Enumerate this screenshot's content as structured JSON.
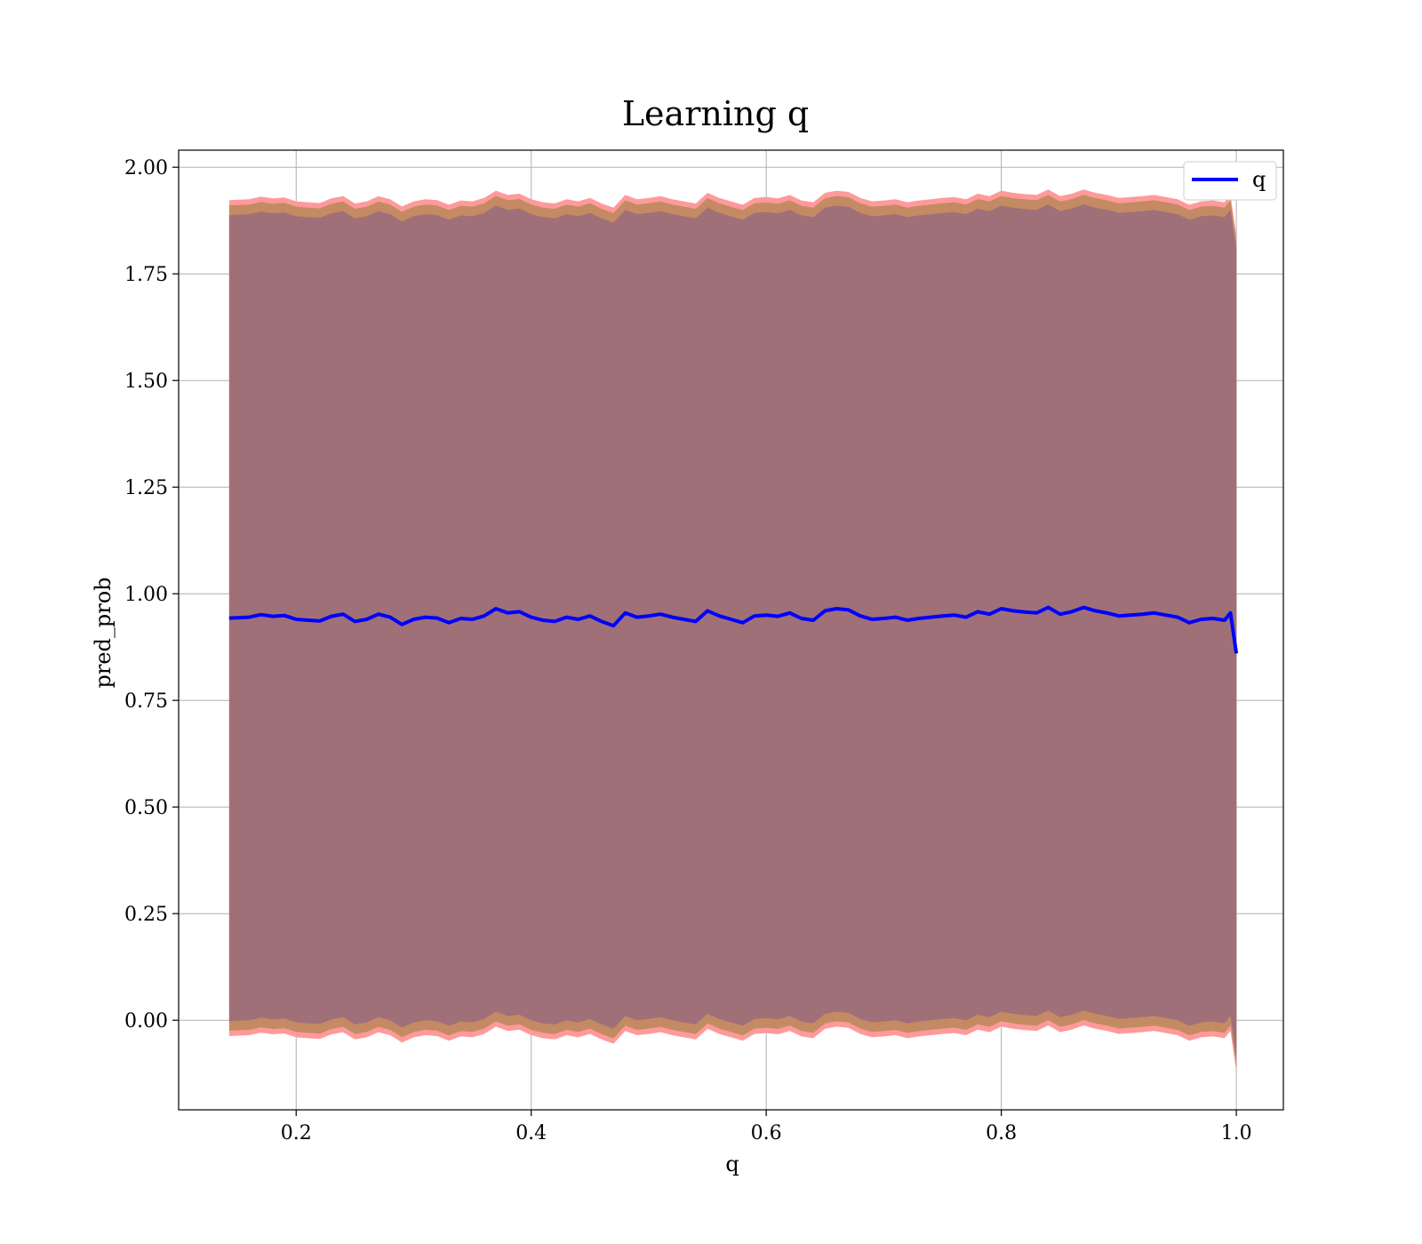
{
  "chart_data": {
    "type": "line",
    "title": "Learning q",
    "xlabel": "q",
    "ylabel": "pred_prob",
    "xlim": [
      0.1,
      1.04
    ],
    "ylim": [
      -0.21,
      2.04
    ],
    "x_ticks": [
      0.2,
      0.4,
      0.6,
      0.8,
      1.0
    ],
    "x_tick_labels": [
      "0.2",
      "0.4",
      "0.6",
      "0.8",
      "1.0"
    ],
    "y_ticks": [
      0.0,
      0.25,
      0.5,
      0.75,
      1.0,
      1.25,
      1.5,
      1.75,
      2.0
    ],
    "y_tick_labels": [
      "0.00",
      "0.25",
      "0.50",
      "0.75",
      "1.00",
      "1.25",
      "1.50",
      "1.75",
      "2.00"
    ],
    "grid": true,
    "legend": {
      "position": "top-right",
      "entries": [
        {
          "label": "q",
          "color": "#0000ff"
        }
      ]
    },
    "series": [
      {
        "name": "q",
        "color": "#0000ff",
        "x": [
          0.143,
          0.16,
          0.17,
          0.18,
          0.19,
          0.2,
          0.21,
          0.22,
          0.23,
          0.24,
          0.25,
          0.26,
          0.27,
          0.28,
          0.29,
          0.3,
          0.31,
          0.32,
          0.33,
          0.34,
          0.35,
          0.36,
          0.37,
          0.38,
          0.39,
          0.4,
          0.41,
          0.42,
          0.43,
          0.44,
          0.45,
          0.46,
          0.47,
          0.48,
          0.49,
          0.5,
          0.51,
          0.52,
          0.53,
          0.54,
          0.55,
          0.56,
          0.57,
          0.58,
          0.59,
          0.6,
          0.61,
          0.62,
          0.63,
          0.64,
          0.65,
          0.66,
          0.67,
          0.68,
          0.69,
          0.7,
          0.71,
          0.72,
          0.73,
          0.74,
          0.75,
          0.76,
          0.77,
          0.78,
          0.79,
          0.8,
          0.81,
          0.82,
          0.83,
          0.84,
          0.85,
          0.86,
          0.87,
          0.88,
          0.89,
          0.9,
          0.91,
          0.92,
          0.93,
          0.94,
          0.95,
          0.96,
          0.97,
          0.98,
          0.99,
          0.995,
          1.0
        ],
        "values": [
          0.943,
          0.945,
          0.951,
          0.947,
          0.949,
          0.94,
          0.938,
          0.936,
          0.947,
          0.952,
          0.935,
          0.94,
          0.952,
          0.945,
          0.928,
          0.94,
          0.945,
          0.943,
          0.932,
          0.942,
          0.94,
          0.948,
          0.965,
          0.955,
          0.958,
          0.945,
          0.938,
          0.935,
          0.945,
          0.94,
          0.948,
          0.935,
          0.925,
          0.955,
          0.945,
          0.948,
          0.952,
          0.945,
          0.94,
          0.935,
          0.96,
          0.948,
          0.94,
          0.932,
          0.948,
          0.95,
          0.947,
          0.955,
          0.942,
          0.938,
          0.96,
          0.965,
          0.962,
          0.948,
          0.94,
          0.942,
          0.945,
          0.938,
          0.942,
          0.945,
          0.948,
          0.95,
          0.945,
          0.958,
          0.952,
          0.965,
          0.96,
          0.957,
          0.955,
          0.968,
          0.952,
          0.958,
          0.968,
          0.96,
          0.955,
          0.948,
          0.95,
          0.952,
          0.955,
          0.95,
          0.945,
          0.932,
          0.94,
          0.942,
          0.938,
          0.955,
          0.86
        ],
        "band_outer_halfwidth": 0.98,
        "band_inner_halfwidth": 0.955
      }
    ]
  },
  "colors": {
    "band_outer": "#ff9a9a",
    "band_mid": "#c48a64",
    "band_inner": "#a07078",
    "line": "#0000ff",
    "grid": "#b0b0b0"
  }
}
